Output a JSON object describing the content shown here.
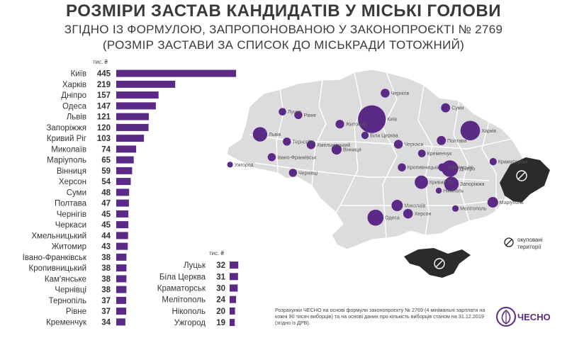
{
  "header": {
    "title": "РОЗМІРИ ЗАСТАВ КАНДИДАТІВ У МІСЬКІ ГОЛОВИ",
    "subtitle": "ЗГІДНО ІЗ ФОРМУЛОЮ, ЗАПРОПОНОВАНОЮ У ЗАКОНОПРОЄКТІ № 2769",
    "subtitle2": "(РОЗМІР ЗАСТАВИ ЗА СПИСОК ДО МІСЬКРАДИ ТОТОЖНИЙ)"
  },
  "colors": {
    "bar": "#5b2a86",
    "map_fill": "#dcdcdc",
    "map_stroke": "#ffffff",
    "occupied": "#2b2b2b"
  },
  "chart_data": {
    "type": "bar",
    "unit_label": "тис. ₴",
    "series_left": {
      "categories": [
        "Київ",
        "Харків",
        "Дніпро",
        "Одеса",
        "Львів",
        "Запоріжжя",
        "Кривий Ріг",
        "Миколаїв",
        "Маріуполь",
        "Вінниця",
        "Херсон",
        "Суми",
        "Полтава",
        "Чернігів",
        "Черкаси",
        "Хмельницький",
        "Житомир",
        "Івано-Франківськ",
        "Кропивницький",
        "Кам'янське",
        "Чернівці",
        "Тернопіль",
        "Рівне",
        "Кременчук"
      ],
      "values": [
        445,
        219,
        157,
        147,
        121,
        120,
        103,
        74,
        65,
        59,
        54,
        48,
        47,
        45,
        45,
        44,
        43,
        38,
        38,
        38,
        38,
        37,
        37,
        34
      ]
    },
    "series_right": {
      "categories": [
        "Луцьк",
        "Біла Церква",
        "Краматорськ",
        "Мелітополь",
        "Нікополь",
        "Ужгород"
      ],
      "values": [
        32,
        31,
        30,
        24,
        20,
        19
      ]
    }
  },
  "map": {
    "cities": [
      {
        "name": "Київ",
        "value": 445,
        "lon": 30.52,
        "lat": 50.45
      },
      {
        "name": "Харків",
        "value": 219,
        "lon": 36.23,
        "lat": 49.99
      },
      {
        "name": "Дніпро",
        "value": 157,
        "lon": 35.05,
        "lat": 48.46
      },
      {
        "name": "Одеса",
        "value": 147,
        "lon": 30.73,
        "lat": 46.48
      },
      {
        "name": "Львів",
        "value": 121,
        "lon": 24.03,
        "lat": 49.84
      },
      {
        "name": "Запоріжжя",
        "value": 120,
        "lon": 35.14,
        "lat": 47.84
      },
      {
        "name": "Кривий Ріг",
        "value": 103,
        "lon": 33.39,
        "lat": 47.91
      },
      {
        "name": "Миколаїв",
        "value": 74,
        "lon": 31.99,
        "lat": 46.97
      },
      {
        "name": "Маріуполь",
        "value": 65,
        "lon": 37.54,
        "lat": 47.1
      },
      {
        "name": "Вінниця",
        "value": 59,
        "lon": 28.47,
        "lat": 49.23
      },
      {
        "name": "Херсон",
        "value": 54,
        "lon": 32.62,
        "lat": 46.64
      },
      {
        "name": "Суми",
        "value": 48,
        "lon": 34.8,
        "lat": 50.91
      },
      {
        "name": "Полтава",
        "value": 47,
        "lon": 34.55,
        "lat": 49.59
      },
      {
        "name": "Чернігів",
        "value": 45,
        "lon": 31.29,
        "lat": 51.5
      },
      {
        "name": "Черкаси",
        "value": 45,
        "lon": 32.06,
        "lat": 49.44
      },
      {
        "name": "Хмельницький",
        "value": 44,
        "lon": 26.99,
        "lat": 49.42
      },
      {
        "name": "Житомир",
        "value": 43,
        "lon": 28.66,
        "lat": 50.25
      },
      {
        "name": "Івано-Франківськ",
        "value": 38,
        "lon": 24.71,
        "lat": 48.92
      },
      {
        "name": "Кропивницький",
        "value": 38,
        "lon": 32.26,
        "lat": 48.51
      },
      {
        "name": "Кам'янське",
        "value": 38,
        "lon": 34.61,
        "lat": 48.51
      },
      {
        "name": "Чернівці",
        "value": 38,
        "lon": 25.94,
        "lat": 48.29
      },
      {
        "name": "Тернопіль",
        "value": 37,
        "lon": 25.59,
        "lat": 49.55
      },
      {
        "name": "Рівне",
        "value": 37,
        "lon": 26.25,
        "lat": 50.62
      },
      {
        "name": "Кременчук",
        "value": 34,
        "lon": 33.42,
        "lat": 49.07
      },
      {
        "name": "Луцьк",
        "value": 32,
        "lon": 25.33,
        "lat": 50.75
      },
      {
        "name": "Біла Церква",
        "value": 31,
        "lon": 30.12,
        "lat": 49.8
      },
      {
        "name": "Краматорськ",
        "value": 30,
        "lon": 37.56,
        "lat": 48.74
      },
      {
        "name": "Мелітополь",
        "value": 24,
        "lon": 35.37,
        "lat": 46.85
      },
      {
        "name": "Нікополь",
        "value": 20,
        "lon": 34.4,
        "lat": 47.57
      },
      {
        "name": "Ужгород",
        "value": 19,
        "lon": 22.29,
        "lat": 48.62
      }
    ],
    "legend": {
      "occupied_label": "окуповані території"
    }
  },
  "footer": {
    "note": "Розрахунки ЧЕСНО на основі формули законопроєкту № 2769 (4 мінімальні зарплати на кожні 90 тисяч виборців) та на основі даних про кількість виборців станом на 31.12.2019 (згідно із ДРВ).",
    "logo": "ЧЕСНО",
    "logo_icon": "garlic-icon"
  }
}
